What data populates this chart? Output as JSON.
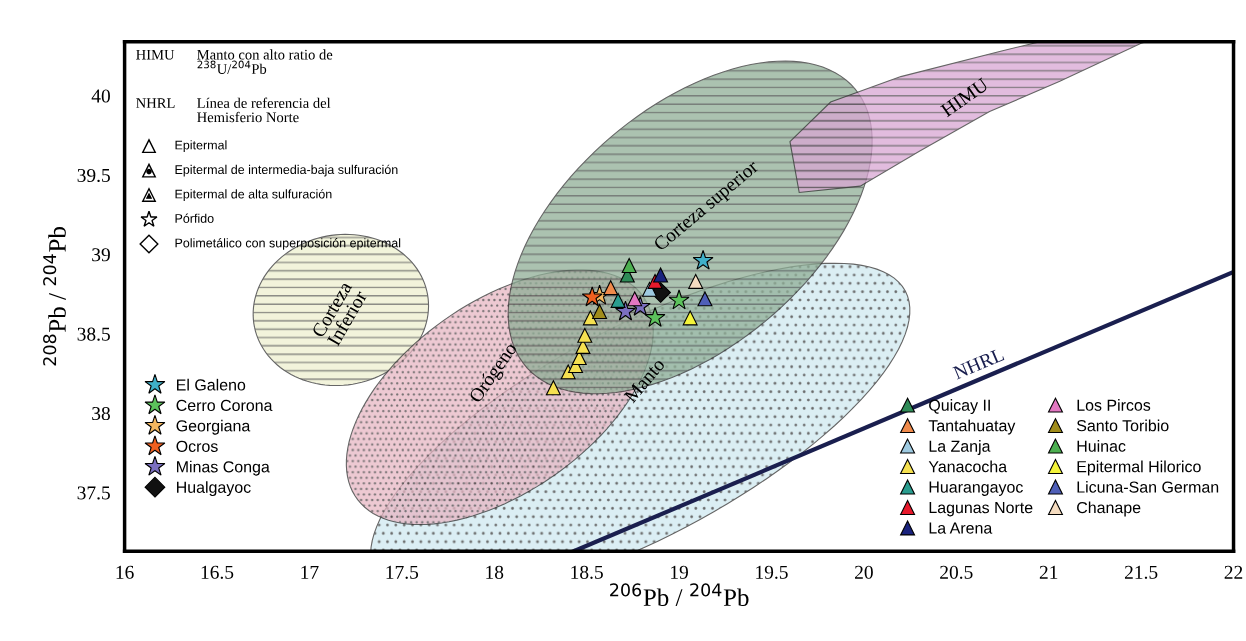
{
  "chart_data": {
    "type": "scatter",
    "xlabel": "$^{206}$Pb / $^{204}$Pb",
    "ylabel": "$^{208}$Pb / $^{204}$Pb",
    "xlim": [
      16,
      22
    ],
    "ylim": [
      37.13,
      40.34
    ],
    "xticks": [
      16,
      16.5,
      17,
      17.5,
      18,
      18.5,
      19,
      19.5,
      20,
      20.5,
      21,
      21.5,
      22
    ],
    "yticks": [
      37.5,
      38,
      38.5,
      39,
      39.5,
      40
    ],
    "grid": false,
    "legend": "bottom",
    "series": [
      {
        "name": "El Galeno",
        "color": "#3fb0c9",
        "marker": "star",
        "x": [
          19.13
        ],
        "values": [
          38.96
        ]
      },
      {
        "name": "Cerro Corona",
        "color": "#5cc25c",
        "marker": "star",
        "x": [
          19.0,
          18.87
        ],
        "values": [
          38.71,
          38.6
        ]
      },
      {
        "name": "Georgiana",
        "color": "#f5b860",
        "marker": "star",
        "x": [
          18.57
        ],
        "values": [
          38.74
        ]
      },
      {
        "name": "Ocros",
        "color": "#f06020",
        "marker": "star",
        "x": [
          18.53
        ],
        "values": [
          38.73
        ]
      },
      {
        "name": "Minas Conga",
        "color": "#7b6fc0",
        "marker": "star",
        "x": [
          18.71,
          18.79
        ],
        "values": [
          38.64,
          38.67
        ]
      },
      {
        "name": "Hualgayoc",
        "color": "#111111",
        "marker": "diamond",
        "x": [
          18.9
        ],
        "values": [
          38.76
        ]
      },
      {
        "name": "Quicay II",
        "color": "#2e8b57",
        "marker": "triangle",
        "x": [
          18.72
        ],
        "values": [
          38.87
        ]
      },
      {
        "name": "Tantahuatay",
        "color": "#f08a4b",
        "marker": "triangle",
        "x": [
          18.63
        ],
        "values": [
          38.79
        ]
      },
      {
        "name": "La Zanja",
        "color": "#9ecae1",
        "marker": "triangle",
        "x": [
          18.84
        ],
        "values": [
          38.78
        ]
      },
      {
        "name": "Yanacocha",
        "color": "#f5e050",
        "marker": "triangle",
        "x": [
          18.32,
          18.4,
          18.44,
          18.46,
          18.48,
          18.49,
          18.52
        ],
        "values": [
          38.16,
          38.26,
          38.3,
          38.35,
          38.42,
          38.49,
          38.6
        ]
      },
      {
        "name": "Huarangayoc",
        "color": "#2a9d8f",
        "marker": "triangle",
        "x": [
          18.67
        ],
        "values": [
          38.71
        ]
      },
      {
        "name": "Lagunas Norte",
        "color": "#e8192c",
        "marker": "triangle",
        "x": [
          18.87
        ],
        "values": [
          38.83
        ]
      },
      {
        "name": "La Arena",
        "color": "#1a237e",
        "marker": "triangle",
        "x": [
          18.9
        ],
        "values": [
          38.87
        ]
      },
      {
        "name": "Los Pircos",
        "color": "#e377c2",
        "marker": "triangle",
        "x": [
          18.76
        ],
        "values": [
          38.72
        ]
      },
      {
        "name": "Santo Toribio",
        "color": "#a08c1a",
        "marker": "triangle",
        "x": [
          18.57
        ],
        "values": [
          38.64
        ]
      },
      {
        "name": "Huinac",
        "color": "#4caf50",
        "marker": "triangle",
        "x": [
          18.73
        ],
        "values": [
          38.93
        ]
      },
      {
        "name": "Epitermal Hilorico",
        "color": "#f4f43a",
        "marker": "triangle",
        "x": [
          19.06
        ],
        "values": [
          38.6
        ]
      },
      {
        "name": "Licuna-San German",
        "color": "#4f5fb8",
        "marker": "triangle",
        "x": [
          19.14
        ],
        "values": [
          38.72
        ]
      },
      {
        "name": "Chanape",
        "color": "#f5dcc0",
        "marker": "triangle",
        "x": [
          19.09
        ],
        "values": [
          38.83
        ]
      },
      {
        "name": "NHRL",
        "type": "line",
        "color": "#1a1f4f",
        "marker": "none",
        "x": [
          18.43,
          22.0
        ],
        "values": [
          37.13,
          38.89
        ]
      }
    ],
    "annotations": [
      "HIMU",
      "Manto con alto ratio de\n$^{238}$U/$^{204}$Pb",
      "NHRL",
      "Línea de referencia del\nHemisferio Norte",
      "Epitermal",
      "Epitermal de intermedia-baja sulfuración",
      "Epitermal de alta sulfuración",
      "Pórfido",
      "Polimetálico con superposición epitermal",
      "Corteza\nInferior",
      "Orógeno",
      "Manto",
      "Corteza superior",
      "HIMU"
    ]
  }
}
